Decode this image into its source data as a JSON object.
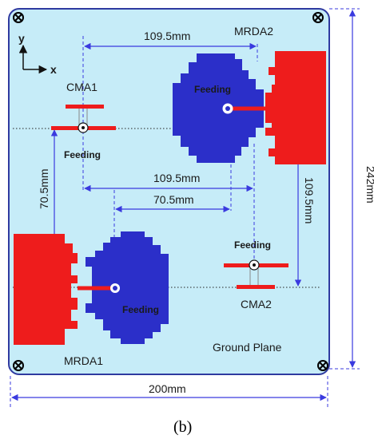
{
  "axes": {
    "y": "y",
    "x": "x"
  },
  "labels": {
    "mrda2": "MRDA2",
    "mrda1": "MRDA1",
    "cma1": "CMA1",
    "cma2": "CMA2",
    "feeding": "Feeding",
    "ground_plane": "Ground Plane"
  },
  "dimensions": {
    "top_spacing": "109.5mm",
    "mid_spacing": "109.5mm",
    "mid_offset": "70.5mm",
    "left_vertical": "70.5mm",
    "right_vertical": "109.5mm",
    "board_height": "242mm",
    "board_width": "200mm"
  },
  "caption": "(b)",
  "colors": {
    "board": "#c6ecf8",
    "board_edge": "#2f3aa0",
    "patch_blue": "#2b2fc9",
    "patch_red": "#ee1c1c",
    "dim_line": "#3a3adf"
  },
  "icons": [
    "screw-hole-icon"
  ]
}
